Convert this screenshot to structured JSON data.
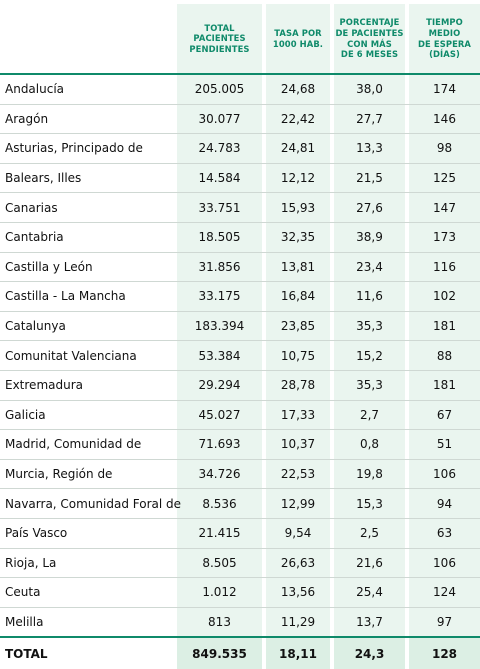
{
  "headers": {
    "total_pacientes": [
      "TOTAL",
      "PACIENTES",
      "PENDIENTES"
    ],
    "tasa": [
      "TASA POR",
      "1000 HAB."
    ],
    "porcentaje": [
      "PORCENTAJE",
      "DE PACIENTES",
      "CON MÁS",
      "DE 6 MESES"
    ],
    "tiempo": [
      "TIEMPO",
      "MEDIO",
      "DE ESPERA",
      "(DÍAS)"
    ]
  },
  "rows": [
    {
      "region": "Andalucía",
      "total": "205.005",
      "tasa": "24,68",
      "pct": "38,0",
      "dias": "174"
    },
    {
      "region": "Aragón",
      "total": "30.077",
      "tasa": "22,42",
      "pct": "27,7",
      "dias": "146"
    },
    {
      "region": "Asturias, Principado de",
      "total": "24.783",
      "tasa": "24,81",
      "pct": "13,3",
      "dias": "98"
    },
    {
      "region": "Balears, Illes",
      "total": "14.584",
      "tasa": "12,12",
      "pct": "21,5",
      "dias": "125"
    },
    {
      "region": "Canarias",
      "total": "33.751",
      "tasa": "15,93",
      "pct": "27,6",
      "dias": "147"
    },
    {
      "region": "Cantabria",
      "total": "18.505",
      "tasa": "32,35",
      "pct": "38,9",
      "dias": "173"
    },
    {
      "region": "Castilla y León",
      "total": "31.856",
      "tasa": "13,81",
      "pct": "23,4",
      "dias": "116"
    },
    {
      "region": "Castilla - La Mancha",
      "total": "33.175",
      "tasa": "16,84",
      "pct": "11,6",
      "dias": "102"
    },
    {
      "region": "Catalunya",
      "total": "183.394",
      "tasa": "23,85",
      "pct": "35,3",
      "dias": "181"
    },
    {
      "region": "Comunitat Valenciana",
      "total": "53.384",
      "tasa": "10,75",
      "pct": "15,2",
      "dias": "88"
    },
    {
      "region": "Extremadura",
      "total": "29.294",
      "tasa": "28,78",
      "pct": "35,3",
      "dias": "181"
    },
    {
      "region": "Galicia",
      "total": "45.027",
      "tasa": "17,33",
      "pct": "2,7",
      "dias": "67"
    },
    {
      "region": "Madrid, Comunidad de",
      "total": "71.693",
      "tasa": "10,37",
      "pct": "0,8",
      "dias": "51"
    },
    {
      "region": "Murcia, Región de",
      "total": "34.726",
      "tasa": "22,53",
      "pct": "19,8",
      "dias": "106"
    },
    {
      "region": "Navarra, Comunidad Foral de",
      "total": "8.536",
      "tasa": "12,99",
      "pct": "15,3",
      "dias": "94"
    },
    {
      "region": "País Vasco",
      "total": "21.415",
      "tasa": "9,54",
      "pct": "2,5",
      "dias": "63"
    },
    {
      "region": "Rioja, La",
      "total": "8.505",
      "tasa": "26,63",
      "pct": "21,6",
      "dias": "106"
    },
    {
      "region": "Ceuta",
      "total": "1.012",
      "tasa": "13,56",
      "pct": "25,4",
      "dias": "124"
    },
    {
      "region": "Melilla",
      "total": "813",
      "tasa": "11,29",
      "pct": "13,7",
      "dias": "97"
    }
  ],
  "total_row": {
    "region": "TOTAL",
    "total": "849.535",
    "tasa": "18,11",
    "pct": "24,3",
    "dias": "128"
  },
  "colors": {
    "accent": "#0f8a6a",
    "column_fill": "#eaf5ef"
  }
}
